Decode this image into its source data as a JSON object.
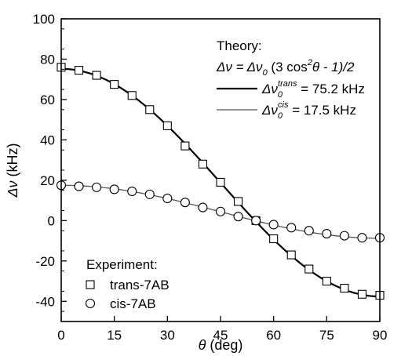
{
  "chart_data": {
    "type": "scatter",
    "xlabel": "θ (deg)",
    "ylabel": "Δν (kHz)",
    "xlim": [
      0,
      90
    ],
    "ylim": [
      -50,
      100
    ],
    "xticks": [
      0,
      15,
      30,
      45,
      60,
      75,
      90
    ],
    "yticks": [
      100,
      80,
      60,
      40,
      20,
      0,
      -20,
      -40
    ],
    "grid": false,
    "theory": {
      "heading": "Theory:",
      "formula": {
        "lhs": "Δν = Δν",
        "sub": "0",
        "rhs_a": " (3 cos",
        "sup": "2",
        "rhs_b": "θ - 1)/2"
      },
      "curves": [
        {
          "prefix": "Δν",
          "sub": "0",
          "sup": "trans",
          "value_text": " = 75.2 kHz",
          "amplitude": 75.2,
          "line_color": "#000000"
        },
        {
          "prefix": "Δν",
          "sub": "0",
          "sup": "cis",
          "value_text": " = 17.5 kHz",
          "amplitude": 17.5,
          "line_color": "#555555"
        }
      ]
    },
    "experiment": {
      "heading": "Experiment:",
      "series": [
        {
          "name": "trans-7AB",
          "marker": "square",
          "x": [
            0,
            5,
            10,
            15,
            20,
            25,
            30,
            35,
            40,
            45,
            50,
            55,
            60,
            65,
            70,
            75,
            80,
            85,
            90
          ],
          "y": [
            76,
            74.5,
            72,
            67.5,
            62,
            55,
            47,
            37,
            28,
            19,
            9.5,
            0,
            -9,
            -17,
            -24,
            -30,
            -33.5,
            -36.5,
            -37
          ]
        },
        {
          "name": "cis-7AB",
          "marker": "circle",
          "x": [
            0,
            5,
            10,
            15,
            20,
            25,
            30,
            35,
            40,
            45,
            50,
            55,
            60,
            65,
            70,
            75,
            80,
            85,
            90
          ],
          "y": [
            17.5,
            17,
            16.5,
            15.5,
            14.5,
            13,
            11,
            9,
            6.5,
            4.5,
            2,
            0,
            -2,
            -3.5,
            -5,
            -6.5,
            -7.5,
            -8.5,
            -8.5
          ]
        }
      ]
    }
  }
}
